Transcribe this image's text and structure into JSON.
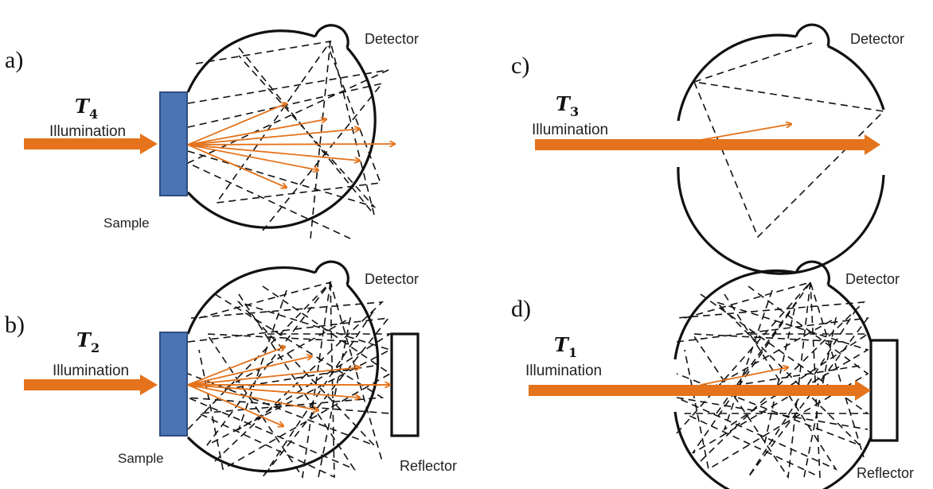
{
  "colors": {
    "beam": "#E4731C",
    "sample": "#4A74B4",
    "line": "#111111"
  },
  "panels": [
    {
      "id": "a",
      "label": "a)",
      "t_symbol": "T",
      "t_subscript": "4",
      "illumination": "Illumination",
      "detector": "Detector",
      "sample": "Sample",
      "reflector": ""
    },
    {
      "id": "b",
      "label": "b)",
      "t_symbol": "T",
      "t_subscript": "2",
      "illumination": "Illumination",
      "detector": "Detector",
      "sample": "Sample",
      "reflector": "Reflector"
    },
    {
      "id": "c",
      "label": "c)",
      "t_symbol": "T",
      "t_subscript": "3",
      "illumination": "Illumination",
      "detector": "Detector",
      "sample": "",
      "reflector": ""
    },
    {
      "id": "d",
      "label": "d)",
      "t_symbol": "T",
      "t_subscript": "1",
      "illumination": "Illumination",
      "detector": "Detector",
      "sample": "",
      "reflector": "Reflector"
    }
  ]
}
